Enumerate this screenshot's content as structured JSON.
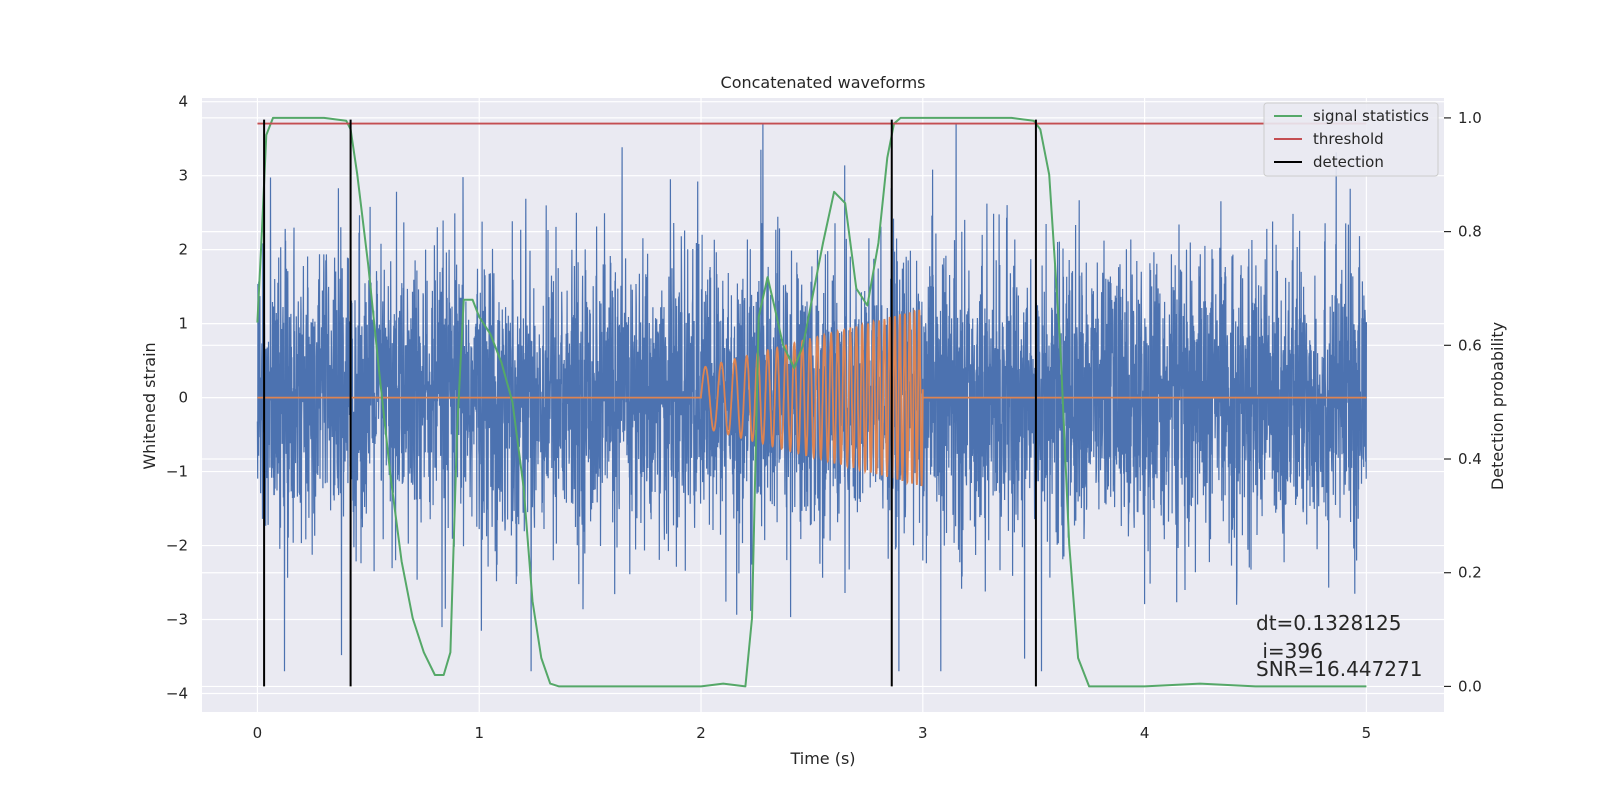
{
  "chart_data": {
    "type": "line",
    "title": "Concatenated waveforms",
    "xlabel": "Time (s)",
    "ylabel": "Whitened strain",
    "y2label": "Detection probability",
    "xlim": [
      -0.25,
      5.35
    ],
    "ylim": [
      -4.25,
      4.05
    ],
    "y2lim": [
      -0.045,
      1.035
    ],
    "xticks": [
      0,
      1,
      2,
      3,
      4,
      5
    ],
    "yticks": [
      -4,
      -3,
      -2,
      -1,
      0,
      1,
      2,
      3,
      4
    ],
    "y2ticks": [
      0.0,
      0.2,
      0.4,
      0.6,
      0.8,
      1.0
    ],
    "y2ticklabels": [
      "0.0",
      "0.2",
      "0.4",
      "0.6",
      "0.8",
      "1.0"
    ],
    "grid": true,
    "legend_position": "top-right",
    "colors": {
      "strain": "#4c72b0",
      "injection": "#dd8452",
      "statistics": "#55a868",
      "threshold": "#c44e52",
      "detection": "#000000",
      "background": "#eaeaf2",
      "grid": "#ffffff"
    },
    "strain": {
      "x_range": [
        0,
        5
      ],
      "description_visible": "noisy whitened strain, amplitude mostly within ±2.5, peaks near ±3.5",
      "envelope_abs": 2.4
    },
    "injection": {
      "x_range": [
        2.0,
        3.0
      ],
      "amplitude_start": 0.4,
      "amplitude_end": 1.2,
      "freq_start_hz": 12,
      "freq_end_hz": 48
    },
    "series": [
      {
        "name": "signal statistics",
        "axis": "right",
        "x": [
          0.0,
          0.02,
          0.04,
          0.07,
          0.1,
          0.2,
          0.3,
          0.4,
          0.42,
          0.45,
          0.5,
          0.55,
          0.6,
          0.65,
          0.7,
          0.75,
          0.8,
          0.84,
          0.87,
          0.9,
          0.93,
          0.97,
          1.0,
          1.05,
          1.1,
          1.15,
          1.2,
          1.24,
          1.28,
          1.32,
          1.36,
          1.5,
          1.8,
          2.0,
          2.1,
          2.2,
          2.23,
          2.26,
          2.3,
          2.33,
          2.37,
          2.42,
          2.46,
          2.5,
          2.55,
          2.6,
          2.65,
          2.7,
          2.75,
          2.8,
          2.84,
          2.87,
          2.9,
          3.0,
          3.2,
          3.4,
          3.5,
          3.53,
          3.57,
          3.62,
          3.66,
          3.7,
          3.75,
          4.0,
          4.25,
          4.5,
          5.0
        ],
        "y": [
          0.64,
          0.8,
          0.97,
          1.0,
          1.0,
          1.0,
          1.0,
          0.995,
          0.98,
          0.9,
          0.74,
          0.55,
          0.37,
          0.22,
          0.12,
          0.06,
          0.02,
          0.02,
          0.06,
          0.45,
          0.68,
          0.68,
          0.65,
          0.62,
          0.57,
          0.5,
          0.35,
          0.15,
          0.05,
          0.005,
          0.0,
          0.0,
          0.0,
          0.0,
          0.005,
          0.0,
          0.12,
          0.65,
          0.72,
          0.67,
          0.6,
          0.56,
          0.6,
          0.68,
          0.78,
          0.87,
          0.85,
          0.7,
          0.67,
          0.78,
          0.93,
          0.99,
          1.0,
          1.0,
          1.0,
          1.0,
          0.995,
          0.98,
          0.9,
          0.6,
          0.25,
          0.05,
          0.0,
          0.0,
          0.005,
          0.0,
          0.0
        ]
      },
      {
        "name": "threshold",
        "axis": "right",
        "x": [
          0,
          5
        ],
        "y": [
          0.99,
          0.99
        ]
      },
      {
        "name": "detection",
        "axis": "right",
        "x_events": [
          0.03,
          0.42,
          2.86,
          3.51
        ],
        "y_range": [
          0.0,
          0.99
        ]
      }
    ],
    "legend": [
      "signal statistics",
      "threshold",
      "detection"
    ],
    "annotations": [
      "dt=0.1328125",
      " i=396",
      "SNR=16.447271"
    ]
  }
}
